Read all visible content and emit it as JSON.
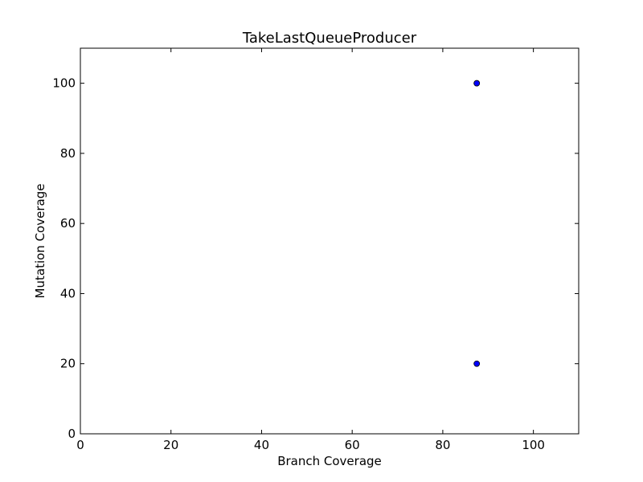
{
  "chart_data": {
    "type": "scatter",
    "title": "TakeLastQueueProducer",
    "xlabel": "Branch Coverage",
    "ylabel": "Mutation Coverage",
    "xlim": [
      0,
      110
    ],
    "ylim": [
      0,
      110
    ],
    "xticks": [
      0,
      20,
      40,
      60,
      80,
      100
    ],
    "yticks": [
      0,
      20,
      40,
      60,
      80,
      100
    ],
    "grid": false,
    "series": [
      {
        "points": [
          {
            "x": 87.5,
            "y": 100
          },
          {
            "x": 87.5,
            "y": 100
          },
          {
            "x": 87.5,
            "y": 20
          }
        ]
      }
    ],
    "colors": {
      "marker_fill": "#0000ff",
      "marker_edge": "#000000",
      "axis": "#000000",
      "background": "#ffffff"
    }
  }
}
